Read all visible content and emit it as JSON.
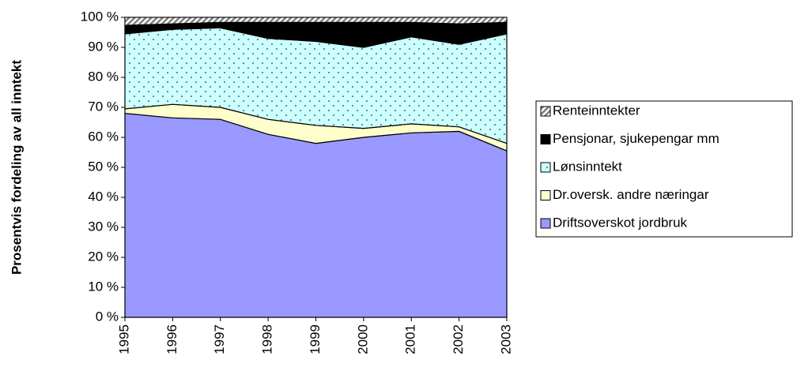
{
  "chart_data": {
    "type": "stacked_area",
    "y_label": "Prosentvis fordeling av all inntekt",
    "categories": [
      "1995",
      "1996",
      "1997",
      "1998",
      "1999",
      "2000",
      "2001",
      "2002",
      "2003"
    ],
    "ylim": [
      0,
      100
    ],
    "yticks": [
      {
        "value": 0,
        "label": "0 %"
      },
      {
        "value": 10,
        "label": "10 %"
      },
      {
        "value": 20,
        "label": "20 %"
      },
      {
        "value": 30,
        "label": "30 %"
      },
      {
        "value": 40,
        "label": "40 %"
      },
      {
        "value": 50,
        "label": "50 %"
      },
      {
        "value": 60,
        "label": "60 %"
      },
      {
        "value": 70,
        "label": "70 %"
      },
      {
        "value": 80,
        "label": "80 %"
      },
      {
        "value": 90,
        "label": "90 %"
      },
      {
        "value": 100,
        "label": "100 %"
      }
    ],
    "series": [
      {
        "name": "Driftsoverskot jordbruk",
        "color": "#9999ff",
        "values": [
          68,
          66.5,
          66,
          61,
          58,
          60,
          61.5,
          62,
          55.5
        ]
      },
      {
        "name": "Dr.oversk. andre næringar",
        "color": "#ffffcc",
        "values": [
          1.5,
          4.5,
          4,
          5,
          6,
          3,
          3,
          1.5,
          2.5
        ]
      },
      {
        "name": "Lønsinntekt",
        "color": "#ccffff",
        "pattern": "dots",
        "values": [
          25,
          25,
          26.5,
          27,
          28,
          27,
          29,
          27.5,
          36.5
        ]
      },
      {
        "name": "Pensjonar, sjukepengar mm",
        "color": "#000000",
        "values": [
          3,
          2,
          2,
          5.5,
          6.5,
          8.5,
          5,
          7,
          4
        ]
      },
      {
        "name": "Renteinntekter",
        "color": "#c0c0c0",
        "pattern": "hatch",
        "values": [
          2.5,
          2,
          1.5,
          1.5,
          1.5,
          1.5,
          1.5,
          2,
          1.5
        ]
      }
    ],
    "legend": "right"
  }
}
